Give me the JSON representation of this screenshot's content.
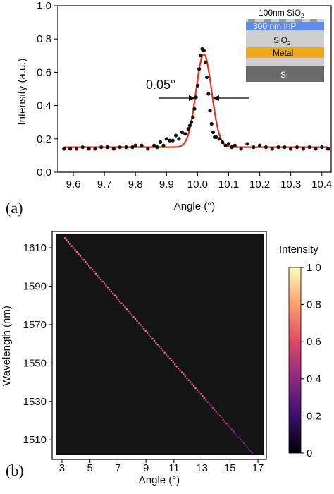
{
  "chart_data": [
    {
      "type": "scatter",
      "panel_label": "(a)",
      "xlabel": "Angle (°)",
      "ylabel": "Intensity (a.u.)",
      "xlim": [
        9.55,
        10.43
      ],
      "ylim": [
        0.0,
        1.0
      ],
      "x_ticks": [
        "9.6",
        "9.7",
        "9.8",
        "9.9",
        "10.0",
        "10.1",
        "10.2",
        "10.3",
        "10.4"
      ],
      "y_ticks": [
        "0.0",
        "0.2",
        "0.4",
        "0.6",
        "0.8",
        "1.0"
      ],
      "annotation": "0.05°",
      "grid": false,
      "series": [
        {
          "kind": "measured",
          "color": "#111111",
          "x": [
            9.57,
            9.59,
            9.61,
            9.63,
            9.65,
            9.67,
            9.69,
            9.71,
            9.73,
            9.75,
            9.77,
            9.79,
            9.8,
            9.82,
            9.84,
            9.86,
            9.87,
            9.88,
            9.89,
            9.9,
            9.91,
            9.92,
            9.93,
            9.94,
            9.95,
            9.96,
            9.97,
            9.975,
            9.98,
            9.985,
            9.99,
            9.995,
            10.0,
            10.005,
            10.01,
            10.015,
            10.02,
            10.025,
            10.03,
            10.035,
            10.04,
            10.045,
            10.05,
            10.055,
            10.06,
            10.07,
            10.08,
            10.09,
            10.1,
            10.11,
            10.12,
            10.14,
            10.16,
            10.18,
            10.2,
            10.22,
            10.24,
            10.26,
            10.28,
            10.3,
            10.32,
            10.34,
            10.36,
            10.38,
            10.4,
            10.42
          ],
          "y": [
            0.14,
            0.14,
            0.14,
            0.15,
            0.14,
            0.14,
            0.15,
            0.15,
            0.14,
            0.15,
            0.15,
            0.15,
            0.16,
            0.16,
            0.14,
            0.16,
            0.15,
            0.18,
            0.16,
            0.2,
            0.19,
            0.19,
            0.22,
            0.2,
            0.24,
            0.23,
            0.26,
            0.28,
            0.3,
            0.33,
            0.38,
            0.45,
            0.52,
            0.62,
            0.7,
            0.74,
            0.73,
            0.66,
            0.57,
            0.47,
            0.37,
            0.29,
            0.24,
            0.21,
            0.21,
            0.2,
            0.18,
            0.16,
            0.17,
            0.15,
            0.16,
            0.14,
            0.17,
            0.15,
            0.16,
            0.15,
            0.14,
            0.15,
            0.15,
            0.14,
            0.15,
            0.14,
            0.15,
            0.14,
            0.15,
            0.14
          ]
        },
        {
          "kind": "fit",
          "color": "#e0321e",
          "baseline": 0.15,
          "peak": 0.71,
          "center": 10.02,
          "sigma": 0.025
        }
      ],
      "inset_layers": [
        {
          "label": "100nm SiO2",
          "color": "#d0d0d0"
        },
        {
          "label": "300 nm InP",
          "color": "#5b8def"
        },
        {
          "label": "SiO2",
          "color": "#cfcfcf"
        },
        {
          "label": "Metal",
          "color": "#f0a81a"
        },
        {
          "label": "",
          "color": "#cfcfcf"
        },
        {
          "label": "Si",
          "color": "#6a6a6a"
        }
      ]
    },
    {
      "type": "heatmap",
      "panel_label": "(b)",
      "xlabel": "Angle (°)",
      "ylabel": "Wavelength (nm)",
      "xlim": [
        2.6,
        17.4
      ],
      "ylim": [
        1502,
        1617
      ],
      "x_ticks": [
        "3",
        "5",
        "7",
        "9",
        "11",
        "13",
        "15",
        "17"
      ],
      "y_ticks": [
        "1510",
        "1530",
        "1550",
        "1570",
        "1590",
        "1610"
      ],
      "line": {
        "x0": 3.2,
        "y0": 1615,
        "x1": 16.6,
        "y1": 1503
      },
      "colorbar": {
        "title": "Intensity",
        "ticks": [
          "1.0",
          "0.8",
          "0.6",
          "0.4",
          "0.2",
          "0"
        ],
        "stops": [
          "#000004",
          "#3b0f70",
          "#8c2981",
          "#de4968",
          "#fe9f6d",
          "#fcfdbf"
        ]
      },
      "background": "#141414"
    }
  ]
}
